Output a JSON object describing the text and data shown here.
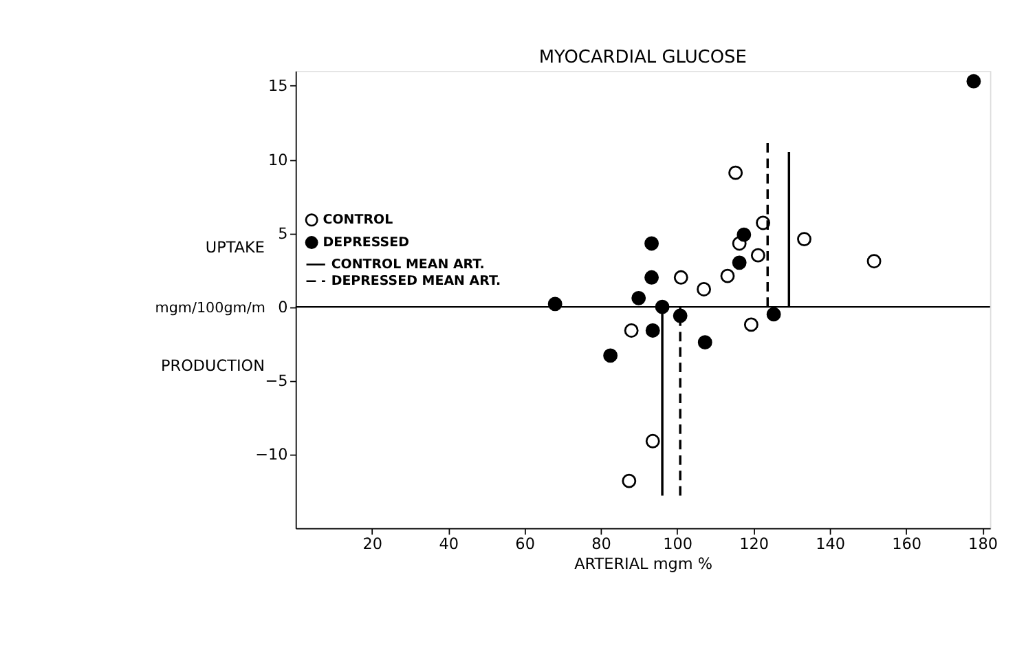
{
  "chart_data": {
    "type": "scatter",
    "title": "MYOCARDIAL GLUCOSE",
    "xlabel": "ARTERIAL mgm %",
    "ylabel": "mgm/100gm/m",
    "annotations": [
      "UPTAKE",
      "PRODUCTION"
    ],
    "xlim": [
      0,
      182
    ],
    "xticks": [
      20,
      40,
      60,
      80,
      100,
      120,
      140,
      160,
      180
    ],
    "ylim": [
      -15,
      16
    ],
    "yticks": [
      -10,
      -5,
      0,
      5,
      10,
      15
    ],
    "grid": false,
    "legend": "left",
    "marker": "circle",
    "ref_lines": [
      {
        "axis": "y",
        "value": 0,
        "color": "#000000",
        "line_style": "solid"
      }
    ],
    "series": [
      {
        "name": "CONTROL",
        "color": "#ffffff",
        "x": [
          88,
          101,
          107,
          113.2,
          115.3,
          116.3,
          122.5,
          121.2,
          119.4,
          133.3,
          151.6,
          93.6,
          87.4
        ],
        "values": [
          -1.6,
          2.0,
          1.2,
          2.1,
          9.1,
          4.3,
          5.7,
          3.5,
          -1.2,
          4.6,
          3.1,
          -9.1,
          -11.8
        ]
      },
      {
        "name": "DEPRESSED",
        "color": "#000000",
        "x": [
          68,
          89.9,
          93.3,
          93.3,
          96.1,
          100.8,
          93.6,
          82.5,
          107.3,
          116.3,
          117.5,
          125.3,
          177.7
        ],
        "values": [
          0.2,
          0.6,
          4.3,
          2.0,
          0,
          -0.6,
          -1.6,
          -3.3,
          -2.4,
          3.0,
          4.9,
          -0.5,
          15.3
        ]
      },
      {
        "name": "CONTROL MEAN ART.",
        "type": "line",
        "line_style": "solid",
        "marker": "none",
        "color": "#000000",
        "x": [
          96.1,
          96.1,
          null,
          129.3,
          129.3
        ],
        "values": [
          -12.8,
          0,
          null,
          0,
          10.5
        ]
      },
      {
        "name": "DEPRESSED MEAN ART.",
        "type": "line",
        "line_style": "dashed",
        "marker": "none",
        "color": "#000000",
        "x": [
          100.8,
          100.8,
          null,
          123.7,
          123.7
        ],
        "values": [
          -12.8,
          0,
          null,
          0,
          11.4
        ]
      }
    ]
  }
}
